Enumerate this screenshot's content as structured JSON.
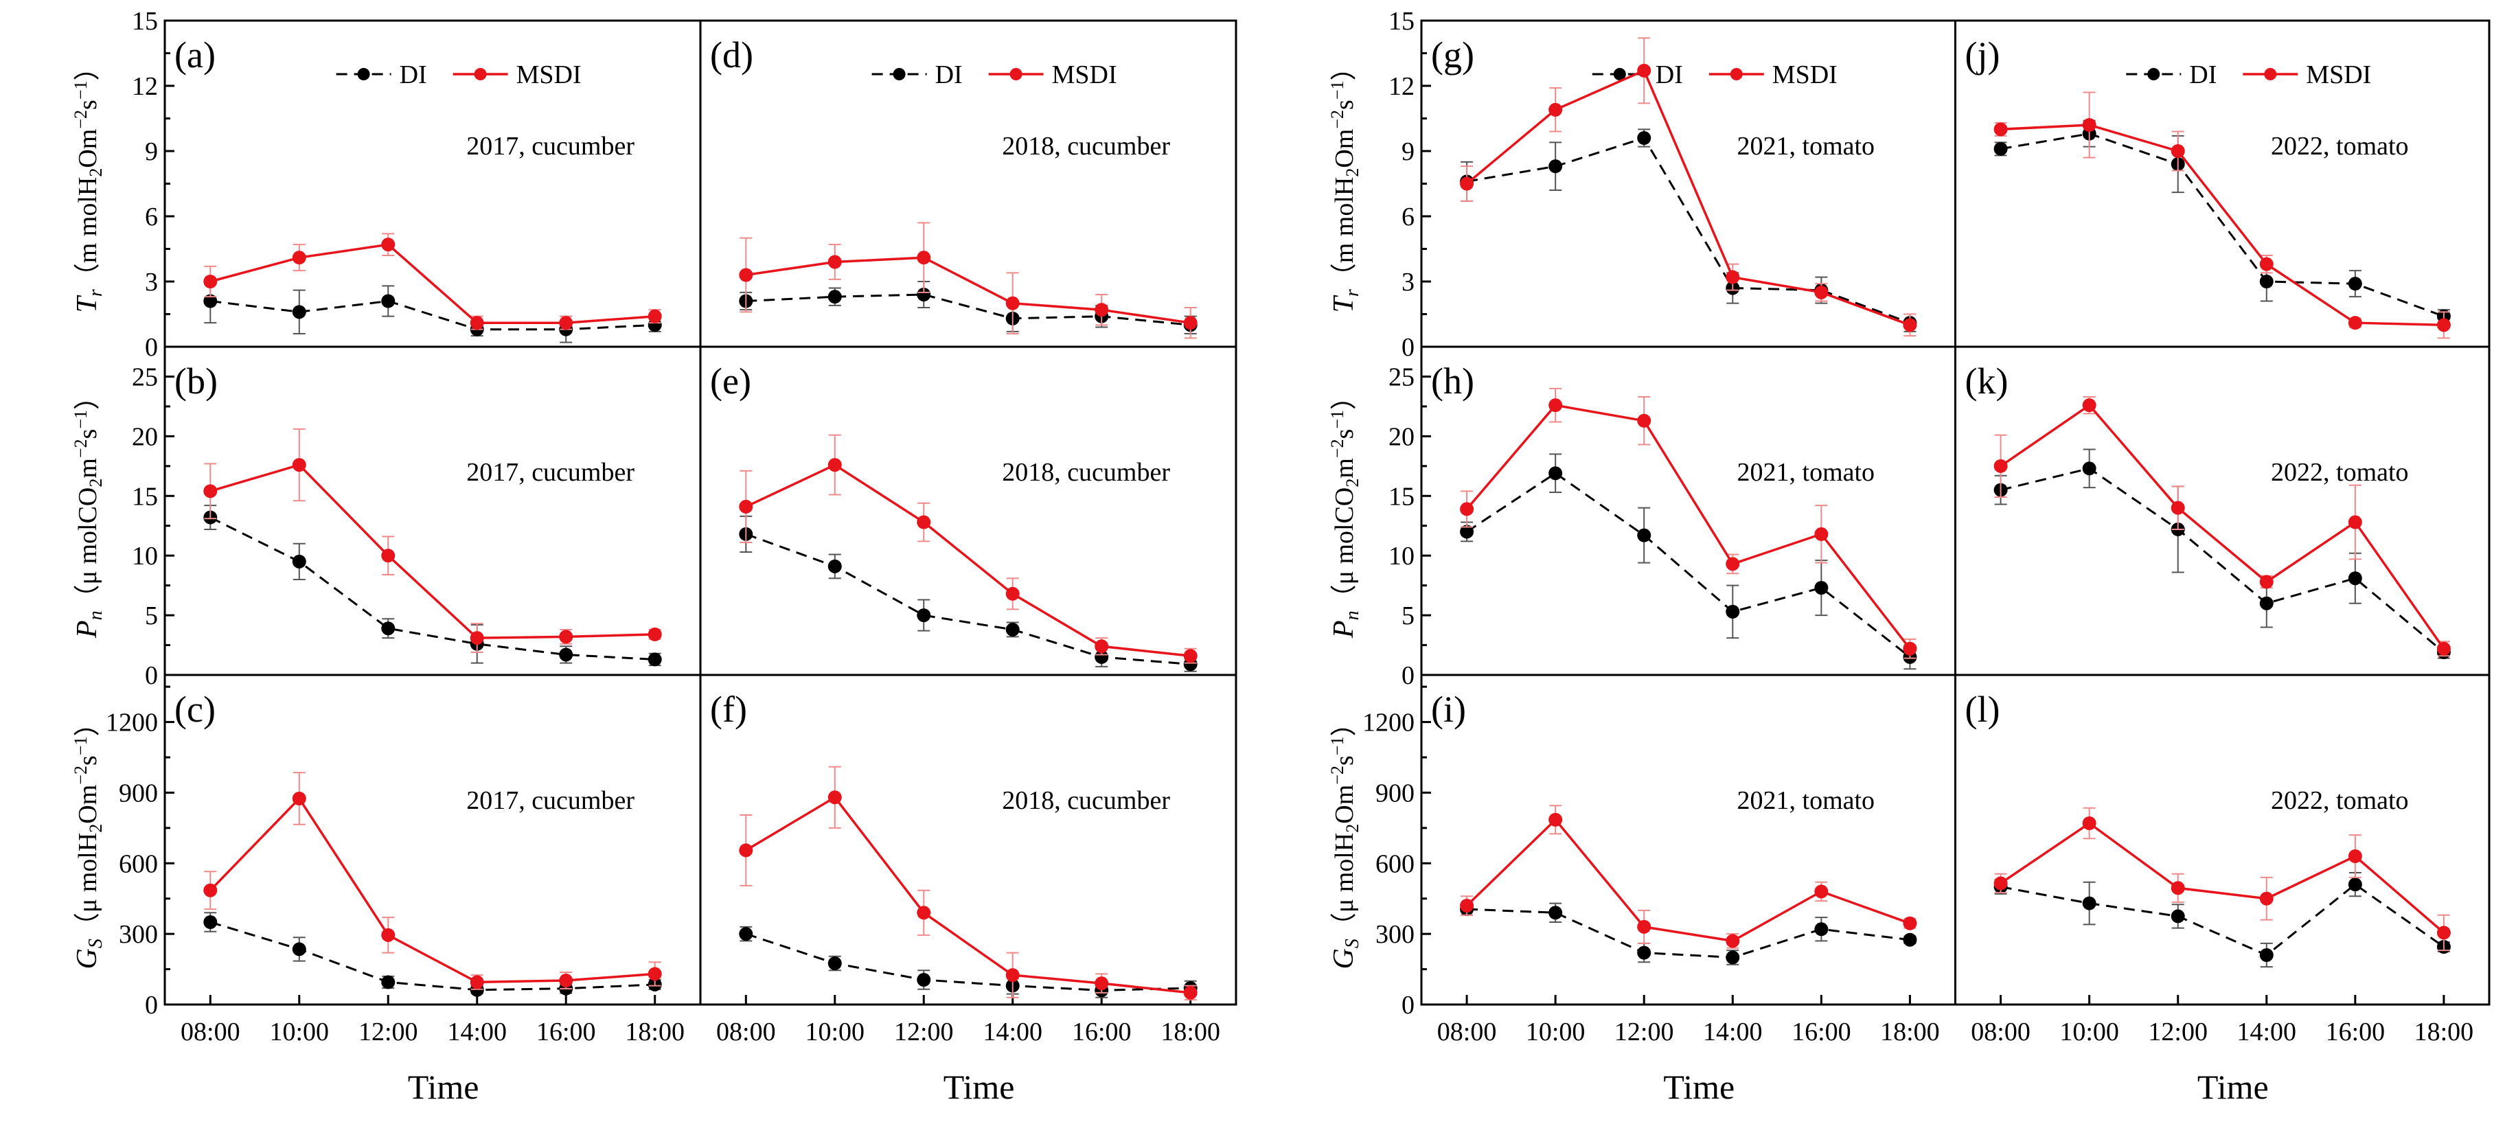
{
  "chart_data": {
    "type": "line",
    "legend": [
      "DI",
      "MSDI"
    ],
    "colors": {
      "DI": "#000000",
      "MSDI": "#e8141b"
    },
    "x_categories": [
      "08:00",
      "10:00",
      "12:00",
      "14:00",
      "16:00",
      "18:00"
    ],
    "xlabel": "Time",
    "ylabels": {
      "Tr": {
        "sym": "T",
        "sub": "r",
        "open": "（m molH",
        "mid": "Om",
        "tail": "s"
      },
      "Pn": {
        "sym": "P",
        "sub": "n",
        "open": "（μ molCO",
        "mid": "m",
        "tail": "s"
      },
      "Gs": {
        "sym": "G",
        "sub": "S",
        "open": "（μ molH",
        "mid": "Om",
        "tail": "s"
      }
    },
    "rows": [
      {
        "key": "Tr",
        "ylim": [
          0,
          15
        ],
        "yticks": [
          "0",
          "3",
          "6",
          "9",
          "12",
          "15"
        ]
      },
      {
        "key": "Pn",
        "ylim": [
          0,
          27.5
        ],
        "yticks": [
          "0",
          "5",
          "10",
          "15",
          "20",
          "25"
        ]
      },
      {
        "key": "Gs",
        "ylim": [
          0,
          1400
        ],
        "yticks": [
          "0",
          "300",
          "600",
          "900",
          "1200"
        ]
      }
    ],
    "panels": [
      {
        "id": "(a)",
        "title": "2017, cucumber",
        "row": 0,
        "col": 0,
        "DI": [
          2.1,
          1.6,
          2.1,
          0.8,
          0.8,
          1.0
        ],
        "DI_err": [
          1.0,
          1.0,
          0.7,
          0.3,
          0.6,
          0.3
        ],
        "MSDI": [
          3.0,
          4.1,
          4.7,
          1.1,
          1.1,
          1.4
        ],
        "MSDI_err": [
          0.7,
          0.6,
          0.5,
          0.3,
          0.3,
          0.3
        ]
      },
      {
        "id": "(b)",
        "title": "2017, cucumber",
        "row": 1,
        "col": 0,
        "DI": [
          13.2,
          9.5,
          3.9,
          2.6,
          1.7,
          1.3
        ],
        "DI_err": [
          1.0,
          1.5,
          0.8,
          1.6,
          0.7,
          0.5
        ],
        "MSDI": [
          15.4,
          17.6,
          10.0,
          3.1,
          3.2,
          3.4
        ],
        "MSDI_err": [
          2.3,
          3.0,
          1.6,
          1.2,
          0.6,
          0.4
        ]
      },
      {
        "id": "(c)",
        "title": "2017, cucumber",
        "row": 2,
        "col": 0,
        "DI": [
          350,
          235,
          95,
          62,
          68,
          85
        ],
        "DI_err": [
          40,
          50,
          25,
          15,
          20,
          20
        ],
        "MSDI": [
          485,
          875,
          295,
          95,
          102,
          130
        ],
        "MSDI_err": [
          80,
          110,
          75,
          30,
          35,
          50
        ]
      },
      {
        "id": "(d)",
        "title": "2018, cucumber",
        "row": 0,
        "col": 1,
        "DI": [
          2.1,
          2.3,
          2.4,
          1.3,
          1.4,
          1.0
        ],
        "DI_err": [
          0.4,
          0.4,
          0.6,
          0.6,
          0.5,
          0.4
        ],
        "MSDI": [
          3.3,
          3.9,
          4.1,
          2.0,
          1.7,
          1.1
        ],
        "MSDI_err": [
          1.7,
          0.8,
          1.6,
          1.4,
          0.7,
          0.7
        ]
      },
      {
        "id": "(e)",
        "title": "2018, cucumber",
        "row": 1,
        "col": 1,
        "DI": [
          11.8,
          9.1,
          5.0,
          3.8,
          1.5,
          0.9
        ],
        "DI_err": [
          1.5,
          1.0,
          1.3,
          0.6,
          0.8,
          0.6
        ],
        "MSDI": [
          14.1,
          17.6,
          12.8,
          6.8,
          2.4,
          1.6
        ],
        "MSDI_err": [
          3.0,
          2.5,
          1.6,
          1.3,
          0.7,
          0.6
        ]
      },
      {
        "id": "(f)",
        "title": "2018, cucumber",
        "row": 2,
        "col": 1,
        "DI": [
          300,
          175,
          105,
          80,
          60,
          70
        ],
        "DI_err": [
          30,
          30,
          40,
          35,
          30,
          30
        ],
        "MSDI": [
          655,
          880,
          390,
          125,
          90,
          50
        ],
        "MSDI_err": [
          150,
          130,
          95,
          95,
          40,
          30
        ]
      },
      {
        "id": "(g)",
        "title": "2021, tomato",
        "row": 0,
        "col": 2,
        "DI": [
          7.6,
          8.3,
          9.6,
          2.7,
          2.6,
          1.1
        ],
        "DI_err": [
          0.9,
          1.1,
          0.4,
          0.7,
          0.6,
          0.4
        ],
        "MSDI": [
          7.5,
          10.9,
          12.7,
          3.2,
          2.5,
          1.0
        ],
        "MSDI_err": [
          0.8,
          1.0,
          1.5,
          0.6,
          0.4,
          0.5
        ]
      },
      {
        "id": "(h)",
        "title": "2021, tomato",
        "row": 1,
        "col": 2,
        "DI": [
          12.0,
          16.9,
          11.7,
          5.3,
          7.3,
          1.5
        ],
        "DI_err": [
          0.8,
          1.6,
          2.3,
          2.2,
          2.3,
          1.0
        ],
        "MSDI": [
          13.9,
          22.6,
          21.3,
          9.3,
          11.8,
          2.2
        ],
        "MSDI_err": [
          1.5,
          1.4,
          2.0,
          0.8,
          2.4,
          0.8
        ]
      },
      {
        "id": "(i)",
        "title": "2021, tomato",
        "row": 2,
        "col": 2,
        "DI": [
          405,
          390,
          220,
          200,
          320,
          275
        ],
        "DI_err": [
          25,
          40,
          40,
          30,
          50,
          15
        ],
        "MSDI": [
          420,
          785,
          330,
          270,
          480,
          345
        ],
        "MSDI_err": [
          40,
          60,
          70,
          30,
          40,
          20
        ]
      },
      {
        "id": "(j)",
        "title": "2022, tomato",
        "row": 0,
        "col": 3,
        "DI": [
          9.1,
          9.8,
          8.4,
          3.0,
          2.9,
          1.4
        ],
        "DI_err": [
          0.3,
          0.6,
          1.3,
          0.9,
          0.6,
          0.3
        ],
        "MSDI": [
          10.0,
          10.2,
          9.0,
          3.8,
          1.1,
          1.0
        ],
        "MSDI_err": [
          0.3,
          1.5,
          0.9,
          0.4,
          0.2,
          0.6
        ]
      },
      {
        "id": "(k)",
        "title": "2022, tomato",
        "row": 1,
        "col": 3,
        "DI": [
          15.5,
          17.3,
          12.2,
          6.0,
          8.1,
          1.9
        ],
        "DI_err": [
          1.2,
          1.6,
          3.6,
          2.0,
          2.1,
          0.5
        ],
        "MSDI": [
          17.5,
          22.6,
          14.0,
          7.8,
          12.8,
          2.2
        ],
        "MSDI_err": [
          2.6,
          0.7,
          1.8,
          0.5,
          3.1,
          0.6
        ]
      },
      {
        "id": "(l)",
        "title": "2022, tomato",
        "row": 2,
        "col": 3,
        "DI": [
          500,
          430,
          375,
          210,
          510,
          245
        ],
        "DI_err": [
          30,
          90,
          50,
          50,
          50,
          20
        ],
        "MSDI": [
          515,
          770,
          495,
          450,
          630,
          305
        ],
        "MSDI_err": [
          40,
          65,
          60,
          90,
          90,
          75
        ]
      }
    ]
  }
}
